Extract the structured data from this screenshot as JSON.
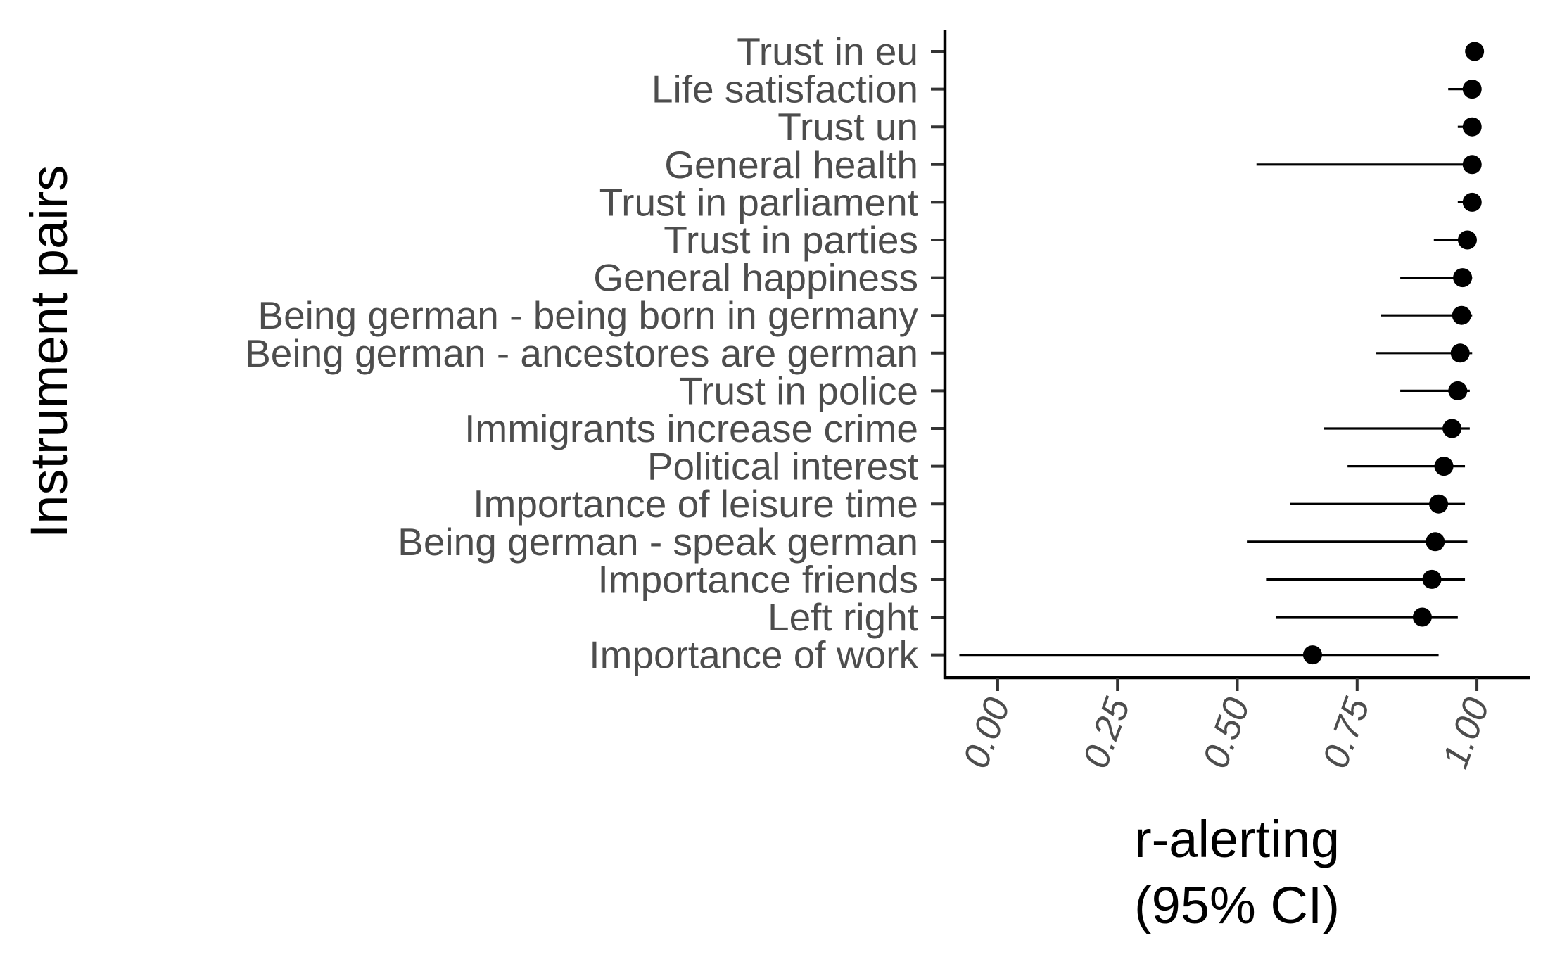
{
  "chart_data": {
    "type": "scatter",
    "subtype": "forest-plot",
    "title": "",
    "ylabel": "Instrument pairs",
    "xlabel_lines": [
      "r-alerting",
      "(95% CI)"
    ],
    "xlim": [
      -0.11,
      1.11
    ],
    "x_ticks": [
      0.0,
      0.25,
      0.5,
      0.75,
      1.0
    ],
    "x_tick_labels": [
      "0.00",
      "0.25",
      "0.50",
      "0.75",
      "1.00"
    ],
    "grid": false,
    "legend": "none",
    "categories": [
      "Trust in eu",
      "Life satisfaction",
      "Trust un",
      "General health",
      "Trust in parliament",
      "Trust in parties",
      "General happiness",
      "Being german - being born in germany",
      "Being german - ancestores are german",
      "Trust in police",
      "Immigrants increase crime",
      "Political interest",
      "Importance of leisure time",
      "Being german - speak german",
      "Importance friends",
      "Left right",
      "Importance of work"
    ],
    "estimates": [
      0.995,
      0.99,
      0.99,
      0.99,
      0.99,
      0.98,
      0.97,
      0.968,
      0.965,
      0.96,
      0.948,
      0.931,
      0.92,
      0.913,
      0.906,
      0.886,
      0.657
    ],
    "ci_lower": [
      0.99,
      0.94,
      0.96,
      0.54,
      0.96,
      0.91,
      0.84,
      0.8,
      0.79,
      0.84,
      0.68,
      0.73,
      0.61,
      0.52,
      0.56,
      0.58,
      -0.08
    ],
    "ci_upper": [
      1.0,
      0.995,
      0.995,
      0.995,
      0.995,
      0.99,
      0.99,
      0.99,
      0.99,
      0.985,
      0.985,
      0.975,
      0.975,
      0.98,
      0.975,
      0.96,
      0.92
    ],
    "colors": {
      "point": "#000000",
      "errorbar": "#000000",
      "axis": "#000000",
      "label": "#4d4d4d"
    }
  }
}
